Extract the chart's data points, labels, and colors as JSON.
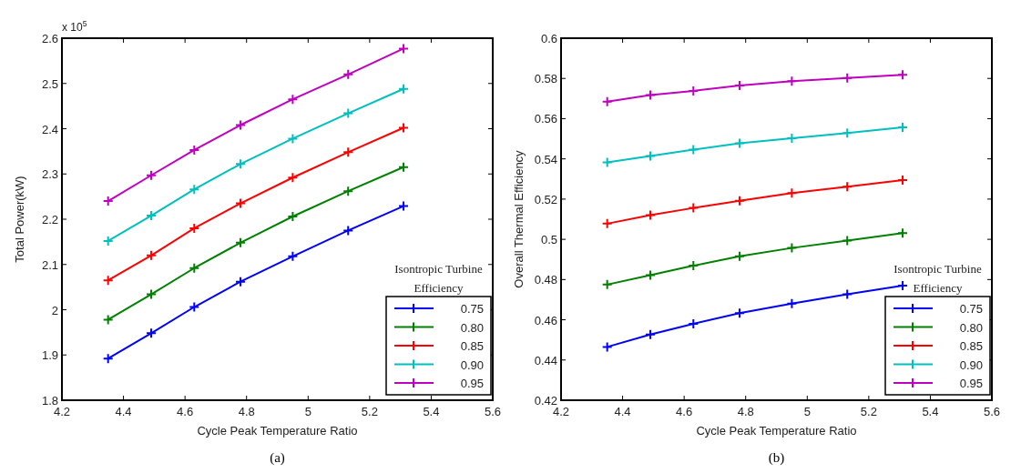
{
  "chart_data": [
    {
      "type": "line",
      "xlabel": "Cycle Peak Temperature Ratio",
      "ylabel": "Total Power(kW)",
      "legend_title": "Isontropic Turbine Efficiency",
      "legend": "bottom right",
      "marker": "cross",
      "line_style": "solid",
      "grid": false,
      "annotations": [
        "x 10$^{5}$",
        "(a)"
      ],
      "x": [
        4.35,
        4.49,
        4.63,
        4.78,
        4.95,
        5.13,
        5.31
      ],
      "xlim": [
        4.2,
        5.6
      ],
      "xticks": [
        4.2,
        4.4,
        4.6,
        4.8,
        5,
        5.2,
        5.4,
        5.6
      ],
      "ylim": [
        1.8,
        2.6
      ],
      "yticks": [
        1.8,
        1.9,
        2,
        2.1,
        2.2,
        2.3,
        2.4,
        2.5,
        2.6
      ],
      "series": [
        {
          "name": "0.75",
          "color": "#0000ff",
          "values": [
            1.892,
            1.948,
            2.006,
            2.062,
            2.118,
            2.175,
            2.229
          ]
        },
        {
          "name": "0.80",
          "color": "#008000",
          "values": [
            1.978,
            2.034,
            2.092,
            2.148,
            2.206,
            2.262,
            2.315
          ]
        },
        {
          "name": "0.85",
          "color": "#ff0000",
          "values": [
            2.065,
            2.12,
            2.18,
            2.235,
            2.292,
            2.348,
            2.402
          ]
        },
        {
          "name": "0.90",
          "color": "#00bfbf",
          "values": [
            2.152,
            2.208,
            2.266,
            2.322,
            2.378,
            2.434,
            2.488
          ]
        },
        {
          "name": "0.95",
          "color": "#bf00bf",
          "values": [
            2.24,
            2.297,
            2.353,
            2.408,
            2.465,
            2.52,
            2.577
          ]
        }
      ]
    },
    {
      "type": "line",
      "xlabel": "Cycle Peak Temperature Ratio",
      "ylabel": "Overall Thermal Efficiency",
      "legend_title": "Isontropic Turbine Efficiency",
      "legend": "bottom right",
      "marker": "cross",
      "line_style": "solid",
      "grid": false,
      "annotations": [
        "(b)"
      ],
      "x": [
        4.35,
        4.49,
        4.63,
        4.78,
        4.95,
        5.13,
        5.31
      ],
      "xlim": [
        4.2,
        5.6
      ],
      "xticks": [
        4.2,
        4.4,
        4.6,
        4.8,
        5,
        5.2,
        5.4,
        5.6
      ],
      "ylim": [
        0.42,
        0.6
      ],
      "yticks": [
        0.42,
        0.44,
        0.46,
        0.48,
        0.5,
        0.52,
        0.54,
        0.56,
        0.58,
        0.6
      ],
      "series": [
        {
          "name": "0.75",
          "color": "#0000ff",
          "values": [
            0.4465,
            0.4527,
            0.458,
            0.4633,
            0.4681,
            0.4727,
            0.477
          ]
        },
        {
          "name": "0.80",
          "color": "#008000",
          "values": [
            0.4775,
            0.4822,
            0.4869,
            0.4916,
            0.4957,
            0.4994,
            0.5031
          ]
        },
        {
          "name": "0.85",
          "color": "#ff0000",
          "values": [
            0.5078,
            0.512,
            0.5156,
            0.5192,
            0.523,
            0.5262,
            0.5294
          ]
        },
        {
          "name": "0.90",
          "color": "#00bfbf",
          "values": [
            0.5383,
            0.5414,
            0.5446,
            0.5478,
            0.5503,
            0.5529,
            0.5557
          ]
        },
        {
          "name": "0.95",
          "color": "#bf00bf",
          "values": [
            0.5685,
            0.5717,
            0.5738,
            0.5765,
            0.5786,
            0.5802,
            0.5818
          ]
        }
      ]
    }
  ]
}
